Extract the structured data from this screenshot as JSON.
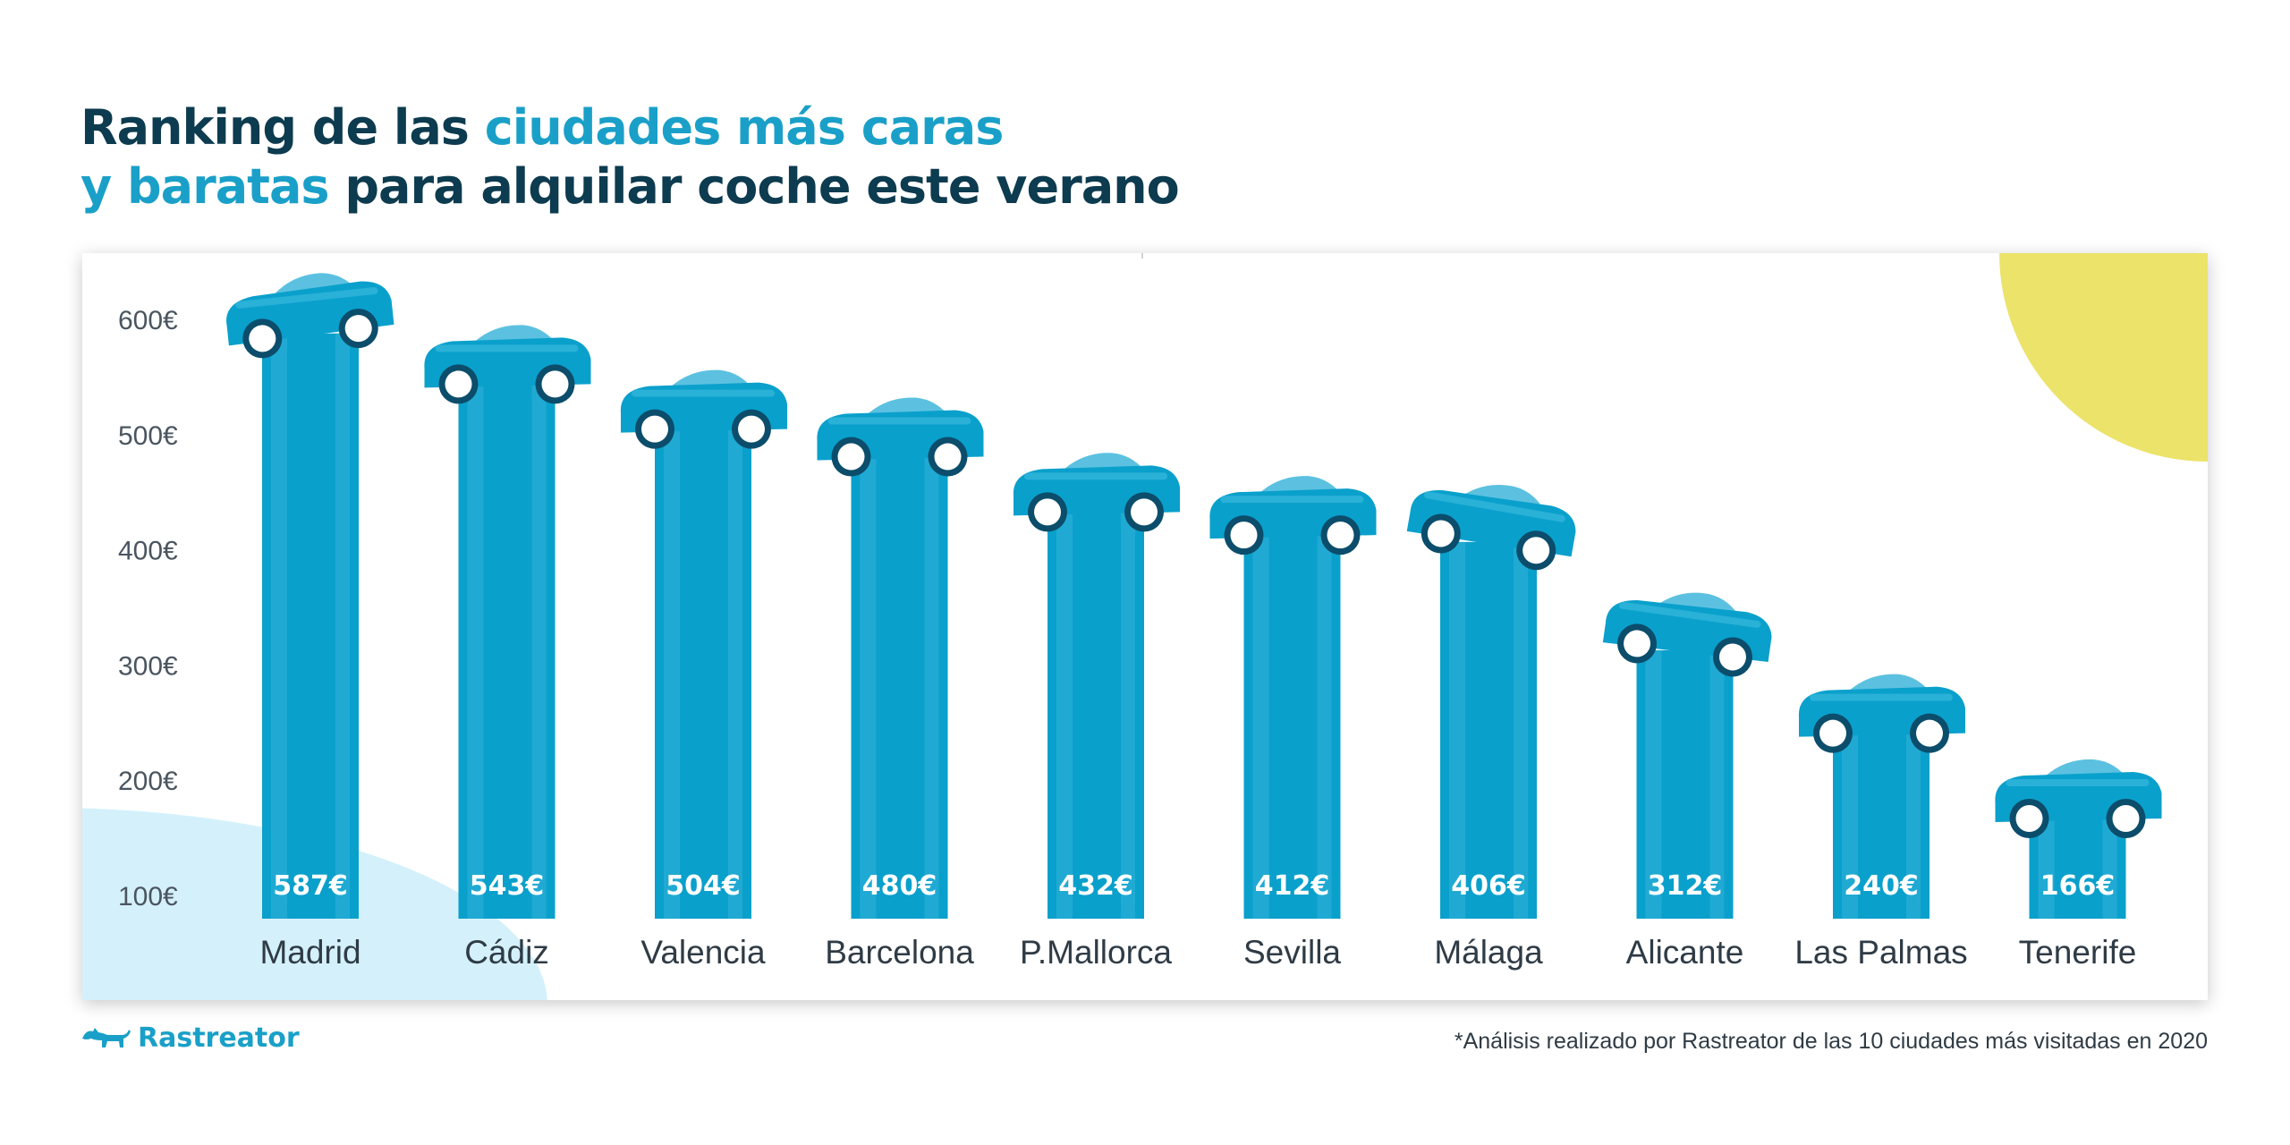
{
  "title": {
    "line1_a": "Ranking de las ",
    "line1_b": "ciudades más caras",
    "line2_a": "y baratas",
    "line2_b": " para alquilar coche este verano"
  },
  "colors": {
    "title_dark": "#0d3b4f",
    "accent": "#1aa0c8",
    "bar": "#0aa0cc",
    "car_roof": "#5cc1e0",
    "wheel_ring": "#0b4d6b",
    "sun": "#ece36a",
    "bubble": "#d4f1fb"
  },
  "chart_data": {
    "type": "bar",
    "categories": [
      "Madrid",
      "Cádiz",
      "Valencia",
      "Barcelona",
      "P.Mallorca",
      "Sevilla",
      "Málaga",
      "Alicante",
      "Las Palmas",
      "Tenerife"
    ],
    "values": [
      587,
      543,
      504,
      480,
      432,
      412,
      406,
      312,
      240,
      166
    ],
    "value_labels": [
      "587€",
      "543€",
      "504€",
      "480€",
      "432€",
      "412€",
      "406€",
      "312€",
      "240€",
      "166€"
    ],
    "y_ticks": [
      100,
      200,
      300,
      400,
      500,
      600
    ],
    "y_tick_labels": [
      "100€",
      "200€",
      "300€",
      "400€",
      "500€",
      "600€"
    ],
    "ylim": [
      100,
      600
    ],
    "grid": false
  },
  "footer": {
    "brand": "Rastreator",
    "brand_icon": "dog-icon",
    "footnote": "*Análisis realizado por Rastreator de las 10 ciudades más visitadas en 2020"
  }
}
